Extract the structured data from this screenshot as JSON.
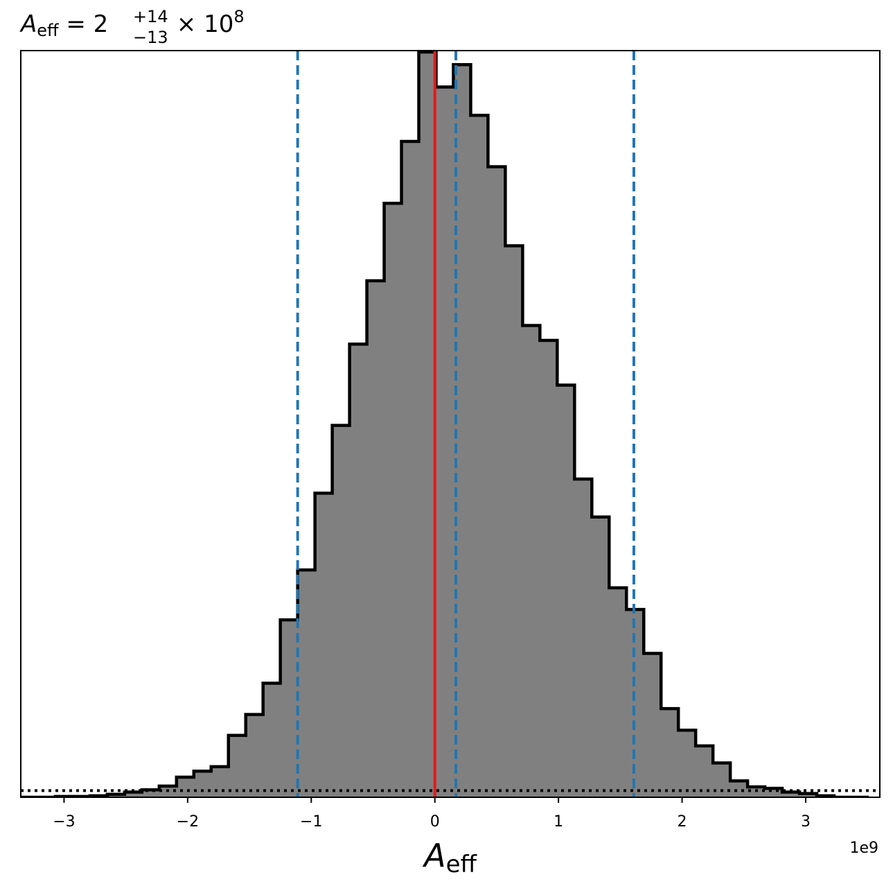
{
  "chart_data": {
    "type": "histogram",
    "title": {
      "symbol": "A",
      "symbol_sub": "eff",
      "equals": " = 2",
      "sup": "+14",
      "sub": "−13",
      "times": " × 10",
      "exp": "8"
    },
    "xlabel": {
      "symbol": "A",
      "sub": "eff"
    },
    "x_offset_label": "1e9",
    "x_unit_scale": 1000000000,
    "xlim": [
      -3.35,
      3.6
    ],
    "ylim": [
      0,
      1.0
    ],
    "xticks": [
      -3,
      -2,
      -1,
      0,
      1,
      2,
      3
    ],
    "xtick_labels": [
      "−3",
      "−2",
      "−1",
      "0",
      "1",
      "2",
      "3"
    ],
    "grid": false,
    "yticks_visible": false,
    "fill_color": "#808080",
    "edge_color": "#000000",
    "bin_edges": [
      -3.35,
      -3.21,
      -3.07,
      -2.93,
      -2.79,
      -2.65,
      -2.51,
      -2.37,
      -2.23,
      -2.09,
      -1.95,
      -1.81,
      -1.67,
      -1.53,
      -1.39,
      -1.25,
      -1.11,
      -0.97,
      -0.83,
      -0.69,
      -0.55,
      -0.41,
      -0.27,
      -0.13,
      0.01,
      0.15,
      0.29,
      0.43,
      0.57,
      0.71,
      0.85,
      0.99,
      1.13,
      1.27,
      1.41,
      1.55,
      1.69,
      1.83,
      1.97,
      2.11,
      2.25,
      2.39,
      2.53,
      2.67,
      2.81,
      2.95,
      3.09,
      3.23,
      3.37,
      3.51
    ],
    "counts": [
      0.0,
      0.0,
      0.001,
      0.001,
      0.002,
      0.004,
      0.007,
      0.01,
      0.015,
      0.027,
      0.035,
      0.041,
      0.083,
      0.111,
      0.153,
      0.238,
      0.305,
      0.408,
      0.499,
      0.608,
      0.693,
      0.797,
      0.88,
      1.0,
      0.953,
      0.983,
      0.915,
      0.846,
      0.74,
      0.633,
      0.613,
      0.553,
      0.427,
      0.376,
      0.281,
      0.252,
      0.193,
      0.119,
      0.09,
      0.069,
      0.046,
      0.022,
      0.014,
      0.012,
      0.007,
      0.005,
      0.002,
      0.0,
      0.0
    ],
    "vlines": [
      {
        "x": 0.0,
        "color": "#e41a1c",
        "style": "solid"
      },
      {
        "x": -1.11,
        "color": "#1f77b4",
        "style": "dashed"
      },
      {
        "x": 0.17,
        "color": "#1f77b4",
        "style": "dashed"
      },
      {
        "x": 1.61,
        "color": "#1f77b4",
        "style": "dashed"
      }
    ],
    "hlines": [
      {
        "y": 0.009,
        "color": "#000000",
        "style": "dotted"
      }
    ]
  }
}
